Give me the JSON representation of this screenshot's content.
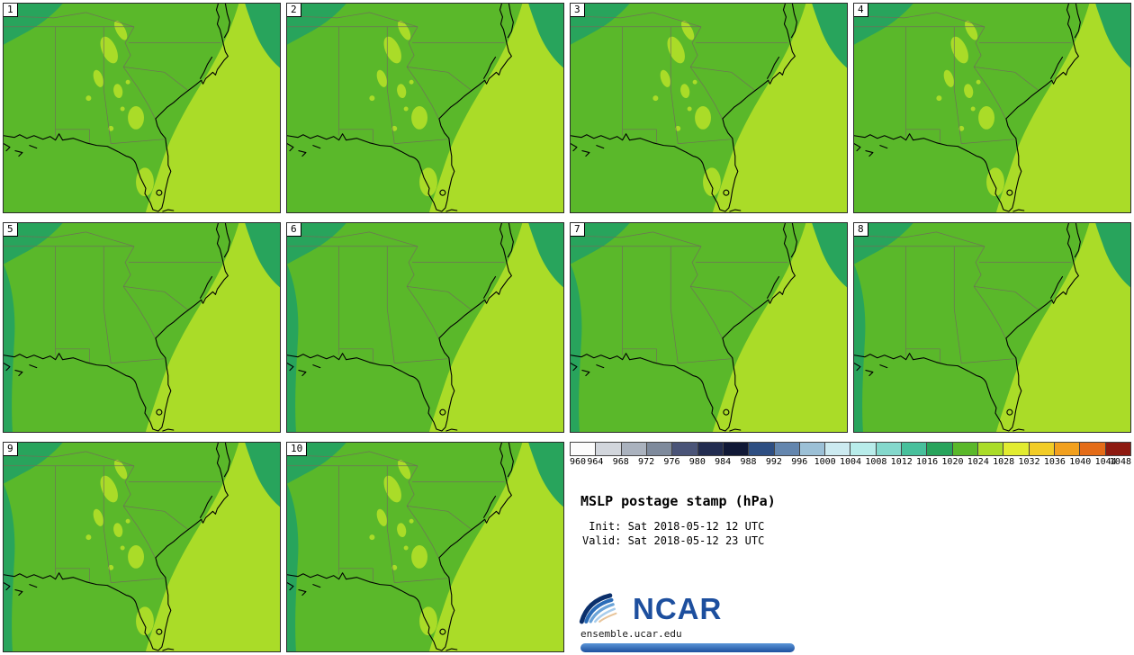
{
  "panels": [
    {
      "label": "1",
      "variant": "a"
    },
    {
      "label": "2",
      "variant": "a"
    },
    {
      "label": "3",
      "variant": "a"
    },
    {
      "label": "4",
      "variant": "a"
    },
    {
      "label": "5",
      "variant": "b"
    },
    {
      "label": "6",
      "variant": "b"
    },
    {
      "label": "7",
      "variant": "b"
    },
    {
      "label": "8",
      "variant": "b"
    },
    {
      "label": "9",
      "variant": "c"
    },
    {
      "label": "10",
      "variant": "c"
    }
  ],
  "colorbar": {
    "unit": "hPa",
    "labels": [
      "960",
      "964",
      "968",
      "972",
      "976",
      "980",
      "984",
      "988",
      "992",
      "996",
      "1000",
      "1004",
      "1008",
      "1012",
      "1016",
      "1020",
      "1024",
      "1028",
      "1032",
      "1036",
      "1040",
      "1044",
      "1048"
    ],
    "colors": [
      "#fcfcfc",
      "#d2d6dc",
      "#aab2be",
      "#7e8a9c",
      "#4a5478",
      "#222c50",
      "#101836",
      "#2e4e82",
      "#6486ae",
      "#9cc0d6",
      "#cceaf0",
      "#b8ecea",
      "#84d8cc",
      "#48c09c",
      "#28a45c",
      "#5ab82a",
      "#aadc28",
      "#e2ec30",
      "#f2cc26",
      "#f2a01e",
      "#e46c18",
      "#8e1a10"
    ]
  },
  "info": {
    "title": "MSLP postage stamp (hPa)",
    "init_line": " Init: Sat 2018-05-12 12 UTC",
    "valid_line": "Valid: Sat 2018-05-12 23 UTC",
    "logo_text": "NCAR",
    "site": "ensemble.ucar.edu"
  },
  "map_colors": {
    "base": "#5ab82a",
    "high": "#aadc28",
    "low": "#28a45c"
  }
}
